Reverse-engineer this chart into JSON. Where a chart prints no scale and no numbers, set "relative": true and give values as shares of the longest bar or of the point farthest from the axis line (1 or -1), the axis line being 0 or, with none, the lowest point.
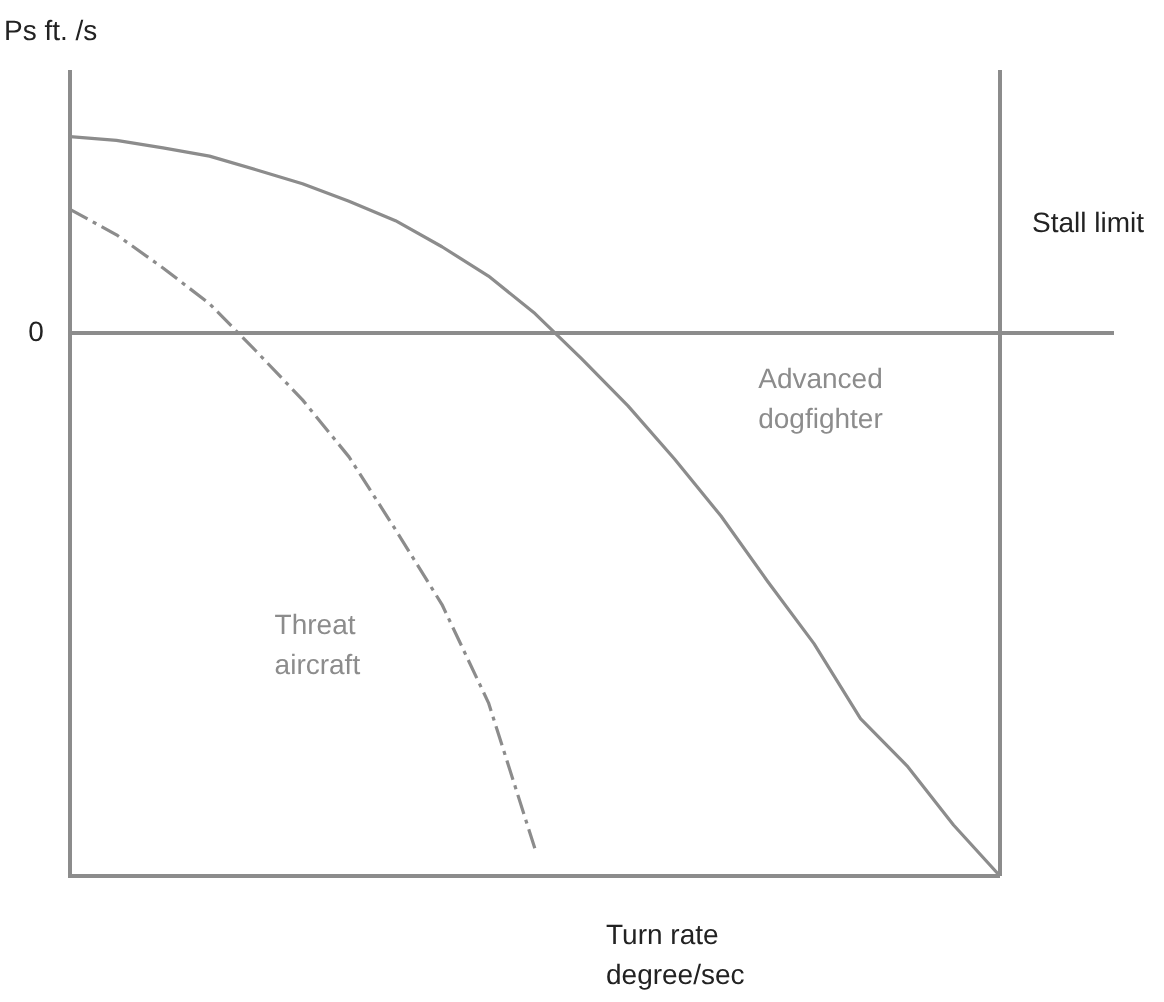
{
  "chart_data": {
    "type": "line",
    "relative": true,
    "ylabel": "Ps ft. /s",
    "xlabel": "Turn rate degree/sec",
    "categories": [
      null,
      null,
      null,
      null,
      null,
      null,
      null,
      null,
      null,
      null,
      null,
      null,
      null,
      null,
      null,
      null,
      null,
      null,
      null,
      null,
      null
    ],
    "series": [
      {
        "name": "Advanced dogfighter",
        "color": "#8c8c8c",
        "line_style": "solid",
        "values": [
          0.362,
          0.355,
          0.341,
          0.326,
          0.301,
          0.275,
          0.243,
          0.207,
          0.159,
          0.105,
          0.036,
          -0.047,
          -0.134,
          -0.232,
          -0.337,
          -0.457,
          -0.572,
          -0.71,
          -0.797,
          -0.906,
          -1
        ]
      },
      {
        "name": "Threat aircraft",
        "color": "#8c8c8c",
        "line_style": "dashed",
        "values": [
          0.228,
          0.181,
          0.12,
          0.054,
          -0.033,
          -0.123,
          -0.228,
          -0.362,
          -0.5,
          -0.681,
          -0.95,
          null,
          null,
          null,
          null,
          null,
          null,
          null,
          null,
          null,
          null
        ]
      }
    ],
    "annotations": [
      "0",
      "Stall limit"
    ],
    "marker": "none"
  }
}
